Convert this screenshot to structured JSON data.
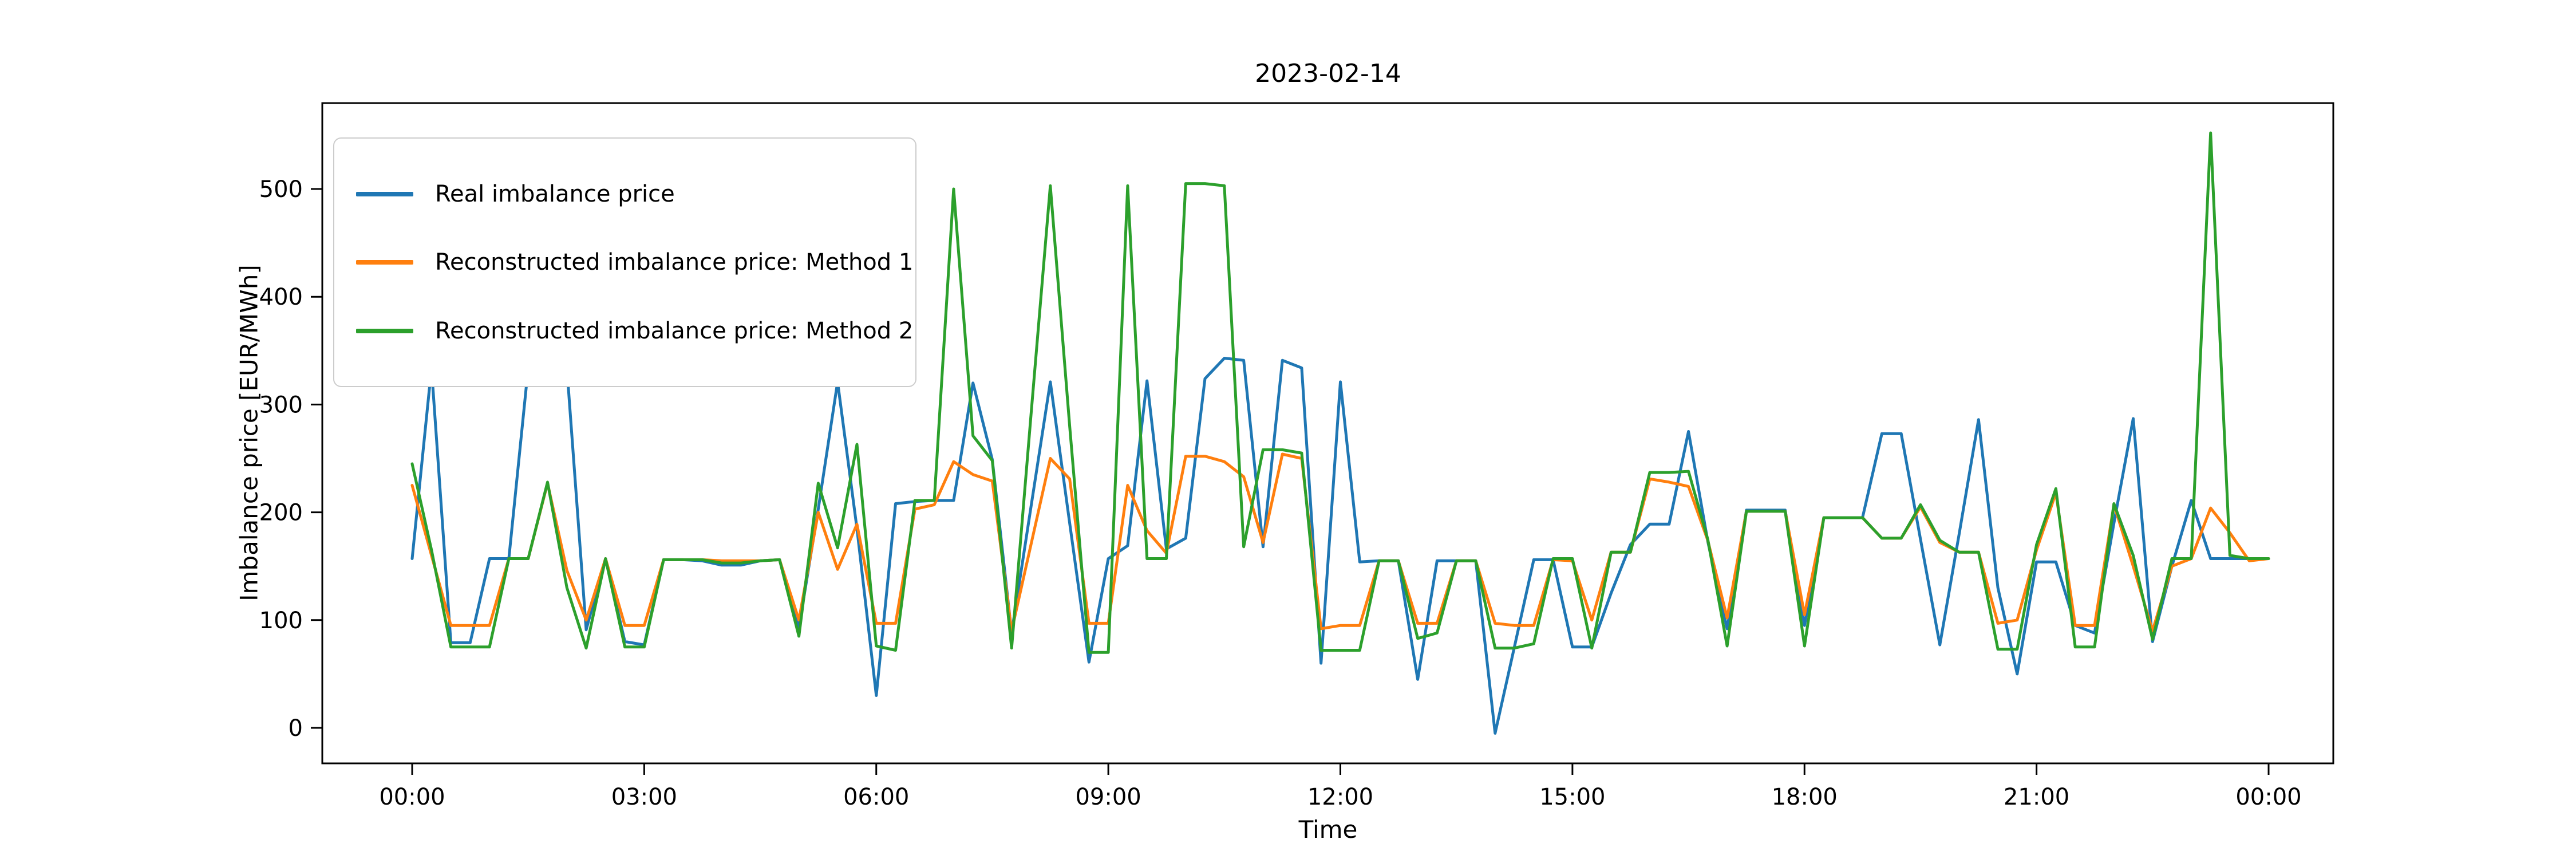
{
  "chart_data": {
    "type": "line",
    "title": "2023-02-14",
    "xlabel": "Time",
    "ylabel": "Imbalance price [EUR/MWh]",
    "grid": false,
    "legend_position": "upper left",
    "ylim": [
      -33,
      580
    ],
    "y_ticks": [
      0,
      100,
      200,
      300,
      400,
      500
    ],
    "x_tick_labels": [
      "00:00",
      "03:00",
      "06:00",
      "09:00",
      "12:00",
      "15:00",
      "18:00",
      "21:00",
      "00:00"
    ],
    "x_tick_hours": [
      0,
      3,
      6,
      9,
      12,
      15,
      18,
      21,
      24
    ],
    "x": [
      "00:00",
      "00:15",
      "00:30",
      "00:45",
      "01:00",
      "01:15",
      "01:30",
      "01:45",
      "02:00",
      "02:15",
      "02:30",
      "02:45",
      "03:00",
      "03:15",
      "03:30",
      "03:45",
      "04:00",
      "04:15",
      "04:30",
      "04:45",
      "05:00",
      "05:15",
      "05:30",
      "05:45",
      "06:00",
      "06:15",
      "06:30",
      "06:45",
      "07:00",
      "07:15",
      "07:30",
      "07:45",
      "08:00",
      "08:15",
      "08:30",
      "08:45",
      "09:00",
      "09:15",
      "09:30",
      "09:45",
      "10:00",
      "10:15",
      "10:30",
      "10:45",
      "11:00",
      "11:15",
      "11:30",
      "11:45",
      "12:00",
      "12:15",
      "12:30",
      "12:45",
      "13:00",
      "13:15",
      "13:30",
      "13:45",
      "14:00",
      "14:15",
      "14:30",
      "14:45",
      "15:00",
      "15:15",
      "15:30",
      "15:45",
      "16:00",
      "16:15",
      "16:30",
      "16:45",
      "17:00",
      "17:15",
      "17:30",
      "17:45",
      "18:00",
      "18:15",
      "18:30",
      "18:45",
      "19:00",
      "19:15",
      "19:30",
      "19:45",
      "20:00",
      "20:15",
      "20:30",
      "20:45",
      "21:00",
      "21:15",
      "21:30",
      "21:45",
      "22:00",
      "22:15",
      "22:30",
      "22:45",
      "23:00",
      "23:15",
      "23:30",
      "23:45",
      "24:00"
    ],
    "series": [
      {
        "name": "Real imbalance price",
        "color": "#1f77b4",
        "values": [
          157,
          334,
          79,
          79,
          157,
          157,
          334,
          334,
          334,
          91,
          157,
          80,
          77,
          156,
          156,
          155,
          151,
          151,
          155,
          156,
          93,
          203,
          321,
          185,
          30,
          208,
          210,
          211,
          211,
          320,
          249,
          88,
          205,
          321,
          190,
          61,
          157,
          169,
          322,
          166,
          176,
          324,
          343,
          341,
          168,
          341,
          334,
          60,
          321,
          154,
          155,
          155,
          45,
          155,
          155,
          155,
          -5,
          75,
          156,
          156,
          75,
          75,
          125,
          170,
          189,
          189,
          275,
          173,
          92,
          202,
          202,
          202,
          95,
          195,
          195,
          195,
          273,
          273,
          175,
          77,
          180,
          286,
          130,
          50,
          154,
          154,
          95,
          88,
          190,
          287,
          80,
          150,
          211,
          157,
          157,
          157,
          157
        ]
      },
      {
        "name": "Reconstructed imbalance price: Method 1",
        "color": "#ff7f0e",
        "values": [
          225,
          160,
          95,
          95,
          95,
          157,
          157,
          227,
          146,
          100,
          157,
          95,
          95,
          156,
          156,
          156,
          155,
          155,
          155,
          156,
          100,
          200,
          147,
          189,
          97,
          97,
          203,
          207,
          247,
          235,
          229,
          90,
          170,
          250,
          231,
          97,
          97,
          225,
          183,
          162,
          252,
          252,
          247,
          233,
          172,
          254,
          250,
          92,
          95,
          95,
          155,
          155,
          97,
          97,
          155,
          155,
          97,
          95,
          95,
          156,
          155,
          100,
          163,
          163,
          231,
          228,
          224,
          174,
          102,
          201,
          201,
          201,
          105,
          195,
          195,
          195,
          176,
          176,
          205,
          172,
          163,
          163,
          97,
          100,
          165,
          218,
          95,
          95,
          207,
          150,
          90,
          150,
          157,
          204,
          181,
          155,
          157
        ]
      },
      {
        "name": "Reconstructed imbalance price: Method 2",
        "color": "#2ca02c",
        "values": [
          245,
          165,
          75,
          75,
          75,
          157,
          157,
          228,
          130,
          74,
          157,
          75,
          75,
          156,
          156,
          156,
          153,
          153,
          155,
          156,
          85,
          227,
          167,
          263,
          76,
          72,
          211,
          211,
          500,
          271,
          248,
          74,
          290,
          503,
          280,
          70,
          70,
          503,
          157,
          157,
          505,
          505,
          503,
          168,
          258,
          258,
          255,
          72,
          72,
          72,
          155,
          155,
          83,
          88,
          155,
          155,
          74,
          74,
          78,
          157,
          157,
          74,
          163,
          163,
          237,
          237,
          238,
          175,
          76,
          201,
          201,
          201,
          76,
          195,
          195,
          195,
          176,
          176,
          207,
          174,
          163,
          163,
          73,
          73,
          170,
          222,
          75,
          75,
          208,
          160,
          82,
          157,
          157,
          552,
          160,
          157,
          157
        ]
      }
    ]
  }
}
